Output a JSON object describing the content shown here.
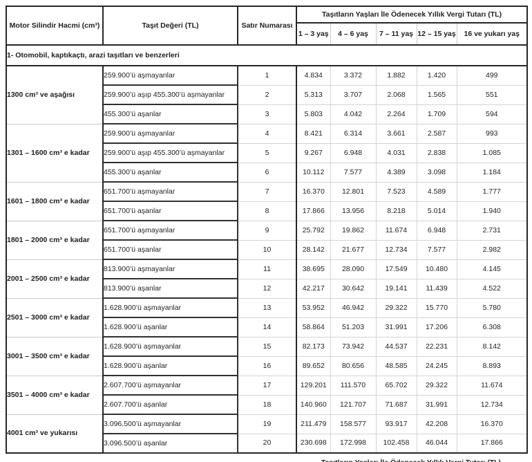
{
  "table": {
    "header": {
      "col_engine": "Motor Silindir Hacmi (cm³)",
      "col_value": "Taşıt Değeri (TL)",
      "col_row_number": "Satır Numarası",
      "group_title": "Taşıtların Yaşları İle Ödenecek Yıllık Vergi Tutarı (TL)",
      "age_columns": [
        "1 – 3 yaş",
        "4 – 6 yaş",
        "7 – 11 yaş",
        "12 – 15 yaş",
        "16 ve yukarı yaş"
      ]
    },
    "section_title": "1- Otomobil, kaptıkaçtı, arazi taşıtları ve benzerleri",
    "groups": [
      {
        "engine": "1300 cm³ ve aşağısı",
        "rows": [
          {
            "value_range": "259.900’ü aşmayanlar",
            "row_number": "1",
            "taxes": [
              "4.834",
              "3.372",
              "1.882",
              "1.420",
              "499"
            ]
          },
          {
            "value_range": "259.900’ü aşıp 455.300’ü aşmayanlar",
            "row_number": "2",
            "taxes": [
              "5.313",
              "3.707",
              "2.068",
              "1.565",
              "551"
            ]
          },
          {
            "value_range": "455.300’ü aşanlar",
            "row_number": "3",
            "taxes": [
              "5.803",
              "4.042",
              "2.264",
              "1.709",
              "594"
            ]
          }
        ]
      },
      {
        "engine": "1301 – 1600 cm³ e kadar",
        "rows": [
          {
            "value_range": "259.900’ü aşmayanlar",
            "row_number": "4",
            "taxes": [
              "8.421",
              "6.314",
              "3.661",
              "2.587",
              "993"
            ]
          },
          {
            "value_range": "259.900’ü aşıp 455.300’ü aşmayanlar",
            "row_number": "5",
            "taxes": [
              "9.267",
              "6.948",
              "4.031",
              "2.838",
              "1.085"
            ]
          },
          {
            "value_range": "455.300’ü aşanlar",
            "row_number": "6",
            "taxes": [
              "10.112",
              "7.577",
              "4.389",
              "3.098",
              "1.184"
            ]
          }
        ]
      },
      {
        "engine": "1601 – 1800 cm³ e kadar",
        "rows": [
          {
            "value_range": "651.700’ü aşmayanlar",
            "row_number": "7",
            "taxes": [
              "16.370",
              "12.801",
              "7.523",
              "4.589",
              "1.777"
            ]
          },
          {
            "value_range": "651.700’ü aşanlar",
            "row_number": "8",
            "taxes": [
              "17.866",
              "13.956",
              "8.218",
              "5.014",
              "1.940"
            ]
          }
        ]
      },
      {
        "engine": "1801 – 2000 cm³ e kadar",
        "rows": [
          {
            "value_range": "651.700’ü aşmayanlar",
            "row_number": "9",
            "taxes": [
              "25.792",
              "19.862",
              "11.674",
              "6.948",
              "2.731"
            ]
          },
          {
            "value_range": "651.700’ü aşanlar",
            "row_number": "10",
            "taxes": [
              "28.142",
              "21.677",
              "12.734",
              "7.577",
              "2.982"
            ]
          }
        ]
      },
      {
        "engine": "2001 – 2500 cm³ e kadar",
        "rows": [
          {
            "value_range": "813.900’ü aşmayanlar",
            "row_number": "11",
            "taxes": [
              "38.695",
              "28.090",
              "17.549",
              "10.480",
              "4.145"
            ]
          },
          {
            "value_range": "813.900’ü aşanlar",
            "row_number": "12",
            "taxes": [
              "42.217",
              "30.642",
              "19.141",
              "11.439",
              "4.522"
            ]
          }
        ]
      },
      {
        "engine": "2501 – 3000 cm³ e kadar",
        "rows": [
          {
            "value_range": "1.628.900’ü aşmayanlar",
            "row_number": "13",
            "taxes": [
              "53.952",
              "46.942",
              "29.322",
              "15.770",
              "5.780"
            ]
          },
          {
            "value_range": "1.628.900’ü aşanlar",
            "row_number": "14",
            "taxes": [
              "58.864",
              "51.203",
              "31.991",
              "17.206",
              "6.308"
            ]
          }
        ]
      },
      {
        "engine": "3001 – 3500 cm³ e kadar",
        "rows": [
          {
            "value_range": "1.628.900’ü aşmayanlar",
            "row_number": "15",
            "taxes": [
              "82.173",
              "73.942",
              "44.537",
              "22.231",
              "8.142"
            ]
          },
          {
            "value_range": "1.628.900’ü aşanlar",
            "row_number": "16",
            "taxes": [
              "89.652",
              "80.656",
              "48.585",
              "24.245",
              "8.893"
            ]
          }
        ]
      },
      {
        "engine": "3501 – 4000 cm³ e kadar",
        "rows": [
          {
            "value_range": "2.607.700’ü aşmayanlar",
            "row_number": "17",
            "taxes": [
              "129.201",
              "111.570",
              "65.702",
              "29.322",
              "11.674"
            ]
          },
          {
            "value_range": "2.607.700’ü aşanlar",
            "row_number": "18",
            "taxes": [
              "140.960",
              "121.707",
              "71.687",
              "31.991",
              "12.734"
            ]
          }
        ]
      },
      {
        "engine": "4001 cm³ ve yukarısı",
        "rows": [
          {
            "value_range": "3.096.500’ü aşmayanlar",
            "row_number": "19",
            "taxes": [
              "211.479",
              "158.577",
              "93.917",
              "42.208",
              "16.370"
            ]
          },
          {
            "value_range": "3.096.500’ü aşanlar",
            "row_number": "20",
            "taxes": [
              "230.698",
              "172.998",
              "102.458",
              "46.044",
              "17.866"
            ]
          }
        ]
      }
    ],
    "footer_next_title": "Taşıtların Yaşları İle Ödenecek Yıllık Vergi Tutarı (TL)"
  }
}
